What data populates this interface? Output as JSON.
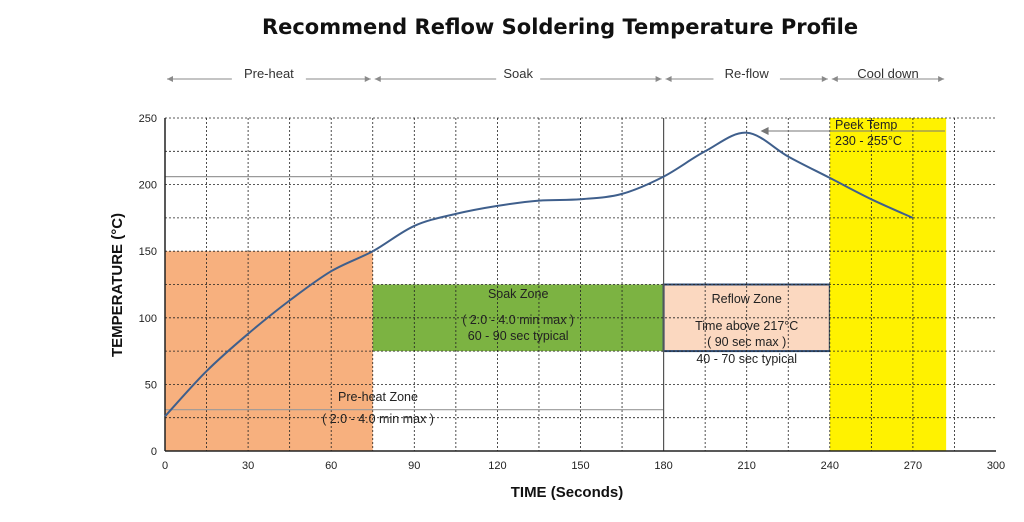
{
  "chart_data": {
    "type": "line",
    "title": "Recommend Reflow Soldering Temperature Profile",
    "xlabel": "TIME (Seconds)",
    "ylabel": "TEMPERATURE (°C)",
    "xlim": [
      0,
      300
    ],
    "ylim": [
      0,
      250
    ],
    "x_ticks": [
      0,
      30,
      60,
      90,
      120,
      150,
      180,
      210,
      240,
      270,
      300
    ],
    "y_ticks": [
      0,
      50,
      100,
      150,
      200,
      250
    ],
    "grid": true,
    "series": [
      {
        "color": "#3f5f8c",
        "points": [
          [
            0,
            26
          ],
          [
            15,
            60
          ],
          [
            30,
            88
          ],
          [
            45,
            113
          ],
          [
            60,
            135
          ],
          [
            75,
            150
          ],
          [
            90,
            169
          ],
          [
            105,
            178
          ],
          [
            120,
            184
          ],
          [
            135,
            188
          ],
          [
            150,
            189
          ],
          [
            165,
            193
          ],
          [
            180,
            206
          ],
          [
            195,
            225
          ],
          [
            210,
            239
          ],
          [
            225,
            221
          ],
          [
            240,
            205
          ],
          [
            255,
            189
          ],
          [
            270,
            175
          ]
        ]
      }
    ],
    "phases": [
      {
        "label": "Pre-heat",
        "from": 0,
        "to": 75
      },
      {
        "label": "Soak",
        "from": 75,
        "to": 180
      },
      {
        "label": "Re-flow",
        "from": 180,
        "to": 240
      },
      {
        "label": "Cool down",
        "from": 240,
        "to": 282
      }
    ],
    "zones": [
      {
        "name": "preheat",
        "color": "#f7b07e",
        "x": [
          0,
          75
        ],
        "y": [
          0,
          150
        ],
        "lines": [
          "Pre-heat Zone",
          "( 2.0 - 4.0 min max )"
        ]
      },
      {
        "name": "soak",
        "color": "#7cb342",
        "x": [
          75,
          180
        ],
        "y": [
          75,
          125
        ],
        "lines": [
          "Soak Zone",
          "( 2.0 - 4.0 min max )",
          "60 - 90 sec typical"
        ]
      },
      {
        "name": "reflow",
        "color": "#fbd8c0",
        "border": "#2c4a73",
        "x": [
          180,
          240
        ],
        "y": [
          75,
          125
        ],
        "lines": [
          "Reflow Zone",
          "Time above 217°C",
          "( 90 sec max )",
          "40 - 70 sec typical"
        ]
      },
      {
        "name": "cooldown",
        "color": "#fff200",
        "x": [
          240,
          282
        ],
        "y": [
          0,
          250
        ]
      }
    ],
    "reference_lines": [
      {
        "name": "peak-level",
        "y": 206,
        "x": [
          0,
          180
        ]
      },
      {
        "name": "preheat-level",
        "y": 31,
        "x": [
          0,
          180
        ]
      }
    ],
    "annotations": [
      {
        "name": "peak-temp",
        "lines": [
          "Peek Temp",
          "230 - 255°C"
        ],
        "arrow_to": [
          215,
          239
        ]
      }
    ]
  }
}
